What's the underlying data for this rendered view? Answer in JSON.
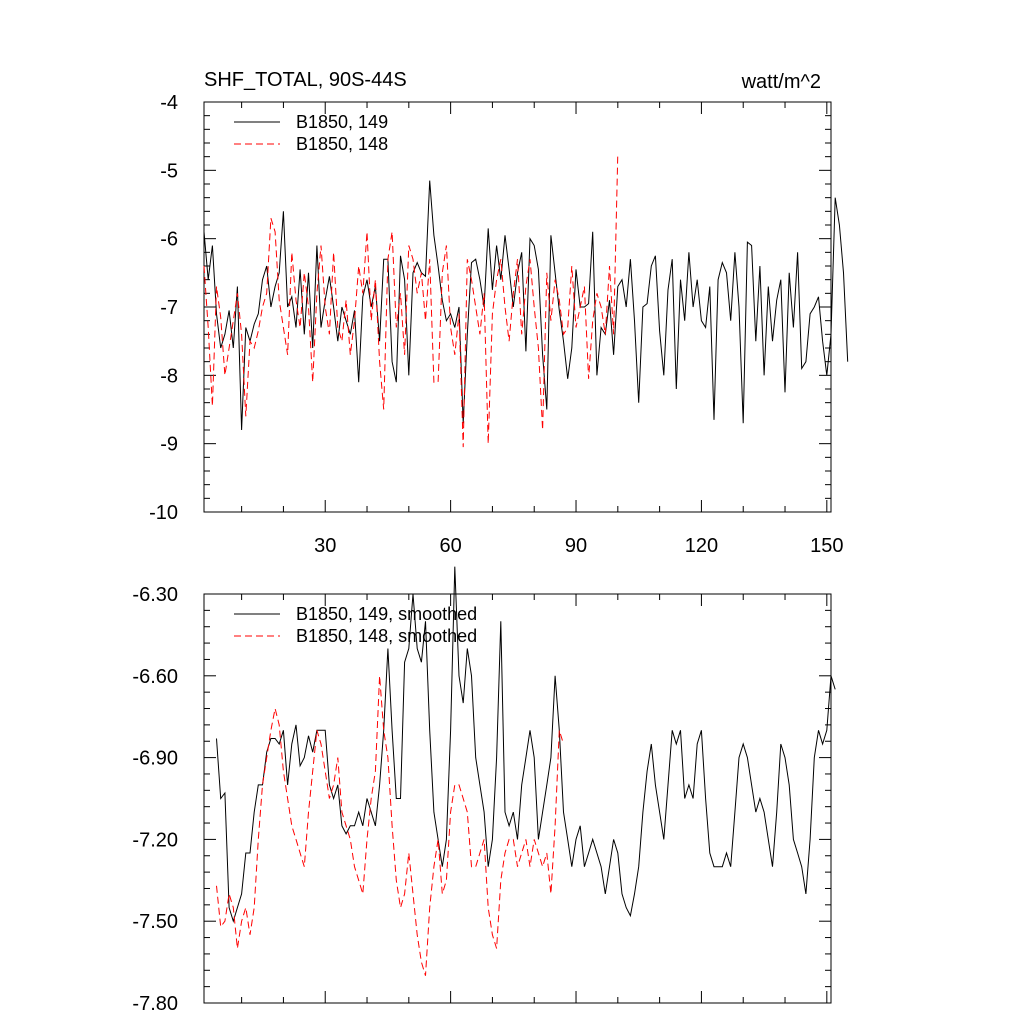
{
  "chart_data": [
    {
      "type": "line",
      "title": "SHF_TOTAL, 90S-44S",
      "units": "watt/m^2",
      "xlim": [
        1,
        151
      ],
      "ylim": [
        -10,
        -4
      ],
      "xticks": [
        30,
        60,
        90,
        120,
        150
      ],
      "xtick_labels": [
        "30",
        "60",
        "90",
        "120",
        "150"
      ],
      "yticks": [
        -10,
        -9,
        -8,
        -7,
        -6,
        -5,
        -4
      ],
      "ytick_labels": [
        "-10",
        "-9",
        "-8",
        "-7",
        "-6",
        "-5",
        "-4"
      ],
      "legend_position": "top-left",
      "series": [
        {
          "name": "B1850, 149",
          "color": "#000000",
          "dash": "solid",
          "x_start": 1,
          "values": [
            -5.9,
            -6.6,
            -6.1,
            -7.1,
            -7.6,
            -7.4,
            -7.05,
            -7.6,
            -6.7,
            -8.8,
            -7.3,
            -7.5,
            -7.25,
            -7.1,
            -6.6,
            -6.4,
            -7.0,
            -6.7,
            -6.5,
            -5.6,
            -7.0,
            -6.85,
            -7.3,
            -6.45,
            -7.4,
            -6.5,
            -7.6,
            -6.1,
            -7.3,
            -6.9,
            -6.55,
            -7.0,
            -7.5,
            -7.0,
            -7.2,
            -7.4,
            -7.05,
            -8.1,
            -6.85,
            -6.6,
            -7.0,
            -6.7,
            -7.5,
            -6.3,
            -6.3,
            -7.8,
            -8.1,
            -6.25,
            -6.6,
            -8.0,
            -6.5,
            -6.35,
            -6.5,
            -6.55,
            -5.15,
            -5.95,
            -6.4,
            -6.9,
            -7.2,
            -7.1,
            -7.3,
            -7.0,
            -8.7,
            -7.4,
            -6.35,
            -6.3,
            -6.6,
            -7.0,
            -5.85,
            -6.75,
            -6.1,
            -6.6,
            -5.95,
            -6.45,
            -7.0,
            -6.5,
            -6.2,
            -7.65,
            -6.0,
            -6.1,
            -6.45,
            -7.7,
            -8.5,
            -5.95,
            -6.5,
            -7.05,
            -7.5,
            -8.05,
            -7.6,
            -6.45,
            -7.0,
            -7.0,
            -6.95,
            -5.9,
            -8.0,
            -7.3,
            -7.4,
            -6.9,
            -7.7,
            -6.7,
            -6.6,
            -7.0,
            -6.3,
            -7.2,
            -8.4,
            -7.0,
            -6.95,
            -6.4,
            -6.25,
            -7.35,
            -8.0,
            -6.75,
            -6.3,
            -8.2,
            -6.6,
            -7.2,
            -6.2,
            -7.0,
            -6.6,
            -7.2,
            -7.3,
            -6.7,
            -8.65,
            -6.6,
            -6.35,
            -6.5,
            -7.2,
            -6.2,
            -7.0,
            -8.7,
            -6.05,
            -6.1,
            -7.5,
            -6.4,
            -8.0,
            -6.7,
            -7.5,
            -6.9,
            -6.6,
            -8.25,
            -6.5,
            -7.3,
            -6.2,
            -7.9,
            -7.8,
            -7.1,
            -7.0,
            -6.85,
            -7.5,
            -8.0,
            -7.4,
            -5.4,
            -5.8,
            -6.5,
            -7.8
          ],
          "x_override": null
        },
        {
          "name": "B1850, 148",
          "color": "#ff0000",
          "dash": "dashed",
          "x_start": 1,
          "values": [
            -6.4,
            -7.3,
            -8.45,
            -6.7,
            -7.15,
            -8.0,
            -7.6,
            -7.2,
            -6.8,
            -7.4,
            -8.6,
            -7.5,
            -7.6,
            -7.35,
            -7.0,
            -6.8,
            -5.7,
            -5.9,
            -6.9,
            -7.3,
            -7.7,
            -6.2,
            -6.9,
            -7.3,
            -6.5,
            -7.0,
            -8.1,
            -6.8,
            -6.1,
            -7.0,
            -7.4,
            -6.2,
            -7.3,
            -7.5,
            -6.9,
            -7.7,
            -7.2,
            -6.4,
            -6.8,
            -5.9,
            -7.2,
            -6.6,
            -7.8,
            -8.5,
            -6.3,
            -5.9,
            -7.3,
            -6.8,
            -7.7,
            -6.1,
            -6.3,
            -6.8,
            -6.5,
            -7.2,
            -6.3,
            -8.1,
            -8.1,
            -6.5,
            -6.1,
            -7.3,
            -7.7,
            -7.1,
            -9.05,
            -6.3,
            -6.6,
            -7.0,
            -7.4,
            -6.8,
            -9.0,
            -7.1,
            -6.6,
            -6.3,
            -7.0,
            -7.5,
            -6.8,
            -6.3,
            -7.4,
            -6.7,
            -6.3,
            -7.0,
            -7.6,
            -8.8,
            -6.5,
            -7.2,
            -6.6,
            -6.9,
            -7.4,
            -7.3,
            -6.4,
            -7.3,
            -7.0,
            -6.7,
            -8.05,
            -7.2,
            -6.8,
            -7.0,
            -7.4,
            -6.4,
            -7.4,
            -4.75
          ],
          "x_override": null
        }
      ]
    },
    {
      "type": "line",
      "xlim": [
        1,
        151
      ],
      "ylim": [
        -7.8,
        -6.3
      ],
      "xticks": [
        30,
        60,
        90,
        120,
        150
      ],
      "yticks": [
        -7.8,
        -7.5,
        -7.2,
        -6.9,
        -6.6,
        -6.3
      ],
      "ytick_labels": [
        "-7.80",
        "-7.50",
        "-7.20",
        "-6.90",
        "-6.60",
        "-6.30"
      ],
      "legend_position": "top-left",
      "series": [
        {
          "name": "B1850, 149, smoothed",
          "color": "#000000",
          "dash": "solid",
          "x_start": 4,
          "values": [
            -6.83,
            -7.05,
            -7.03,
            -7.45,
            -7.5,
            -7.45,
            -7.4,
            -7.25,
            -7.25,
            -7.1,
            -7.0,
            -7.0,
            -6.88,
            -6.83,
            -6.83,
            -6.85,
            -6.8,
            -7.0,
            -6.85,
            -6.78,
            -6.93,
            -6.9,
            -6.82,
            -6.88,
            -6.8,
            -6.8,
            -6.8,
            -7.0,
            -7.05,
            -7.0,
            -7.15,
            -7.18,
            -7.15,
            -7.15,
            -7.1,
            -7.15,
            -7.05,
            -7.1,
            -7.15,
            -7.0,
            -6.8,
            -6.5,
            -6.8,
            -7.05,
            -7.05,
            -6.55,
            -6.5,
            -6.3,
            -6.5,
            -6.55,
            -6.4,
            -6.8,
            -7.1,
            -7.2,
            -7.3,
            -7.2,
            -6.8,
            -6.2,
            -6.6,
            -6.7,
            -6.5,
            -6.6,
            -6.9,
            -7.0,
            -7.1,
            -7.3,
            -7.2,
            -6.9,
            -6.4,
            -7.1,
            -7.15,
            -7.1,
            -7.2,
            -7.0,
            -6.9,
            -6.8,
            -6.9,
            -7.2,
            -7.1,
            -7.0,
            -6.9,
            -6.6,
            -6.8,
            -7.1,
            -7.2,
            -7.3,
            -7.2,
            -7.15,
            -7.3,
            -7.25,
            -7.2,
            -7.25,
            -7.3,
            -7.4,
            -7.3,
            -7.2,
            -7.25,
            -7.4,
            -7.45,
            -7.48,
            -7.4,
            -7.3,
            -7.1,
            -6.95,
            -6.85,
            -7.0,
            -7.1,
            -7.2,
            -7.0,
            -6.8,
            -6.85,
            -6.8,
            -7.05,
            -7.0,
            -7.05,
            -6.85,
            -6.8,
            -7.05,
            -7.25,
            -7.3,
            -7.3,
            -7.3,
            -7.25,
            -7.3,
            -7.1,
            -6.9,
            -6.85,
            -6.9,
            -7.0,
            -7.1,
            -7.05,
            -7.1,
            -7.2,
            -7.3,
            -7.1,
            -6.85,
            -6.9,
            -7.0,
            -7.2,
            -7.25,
            -7.3,
            -7.4,
            -7.2,
            -6.9,
            -6.8,
            -6.85,
            -6.8,
            -6.6,
            -6.65
          ],
          "x_override": null
        },
        {
          "name": "B1850, 148, smoothed",
          "color": "#ff0000",
          "dash": "dashed",
          "x_start": 4,
          "values": [
            -7.37,
            -7.52,
            -7.5,
            -7.4,
            -7.45,
            -7.6,
            -7.5,
            -7.45,
            -7.55,
            -7.45,
            -7.2,
            -7.0,
            -6.9,
            -6.8,
            -6.72,
            -6.78,
            -6.95,
            -7.05,
            -7.15,
            -7.2,
            -7.25,
            -7.3,
            -7.1,
            -6.95,
            -6.8,
            -6.85,
            -6.95,
            -7.05,
            -7.0,
            -6.9,
            -7.1,
            -7.15,
            -7.2,
            -7.3,
            -7.35,
            -7.4,
            -7.2,
            -7.05,
            -6.95,
            -6.6,
            -6.8,
            -6.9,
            -7.15,
            -7.35,
            -7.45,
            -7.4,
            -7.25,
            -7.4,
            -7.55,
            -7.65,
            -7.7,
            -7.45,
            -7.3,
            -7.2,
            -7.4,
            -7.35,
            -7.1,
            -7.0,
            -7.0,
            -7.05,
            -7.1,
            -7.3,
            -7.3,
            -7.25,
            -7.2,
            -7.45,
            -7.55,
            -7.6,
            -7.35,
            -7.25,
            -7.2,
            -7.2,
            -7.3,
            -7.25,
            -7.2,
            -7.3,
            -7.2,
            -7.25,
            -7.3,
            -7.25,
            -7.4,
            -7.15,
            -6.8,
            -6.85
          ],
          "x_override": null
        }
      ]
    }
  ]
}
